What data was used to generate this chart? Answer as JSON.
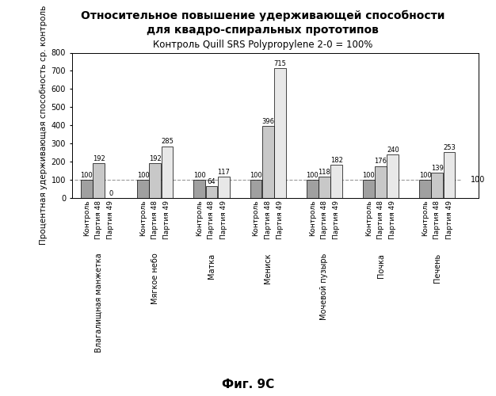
{
  "title_line1": "Относительное повышение удерживающей способности",
  "title_line2": "для квадро-спиральных прототипов",
  "subtitle": "Контроль Quill SRS Polypropylene 2-0 = 100%",
  "ylabel": "Процентная удерживающая способность ср. контроль",
  "caption": "Фиг. 9C",
  "groups": [
    {
      "label": "Влагалищная манжетка",
      "values": [
        100,
        192,
        0
      ]
    },
    {
      "label": "Мягкое небо",
      "values": [
        100,
        192,
        285
      ]
    },
    {
      "label": "Матка",
      "values": [
        100,
        64,
        117
      ]
    },
    {
      "label": "Мениск",
      "values": [
        100,
        396,
        715
      ]
    },
    {
      "label": "Мочевой пузырь",
      "values": [
        100,
        118,
        182
      ]
    },
    {
      "label": "Почка",
      "values": [
        100,
        176,
        240
      ]
    },
    {
      "label": "Печень",
      "values": [
        100,
        139,
        253
      ]
    }
  ],
  "bar_labels": [
    "Контроль",
    "Партия 48",
    "Партия 49"
  ],
  "bar_colors": [
    "#a0a0a0",
    "#c8c8c8",
    "#e8e8e8"
  ],
  "bar_edge_color": "#000000",
  "ylim": [
    0,
    800
  ],
  "yticks": [
    0,
    100,
    200,
    300,
    400,
    500,
    600,
    700,
    800
  ],
  "reference_line": 100,
  "reference_line_color": "#999999",
  "background_color": "#ffffff",
  "plot_bg_color": "#ffffff",
  "title_fontsize": 10,
  "subtitle_fontsize": 8.5,
  "ylabel_fontsize": 7.5,
  "tick_fontsize": 7,
  "bar_label_fontsize": 6.5,
  "group_label_fontsize": 7,
  "value_fontsize": 6
}
